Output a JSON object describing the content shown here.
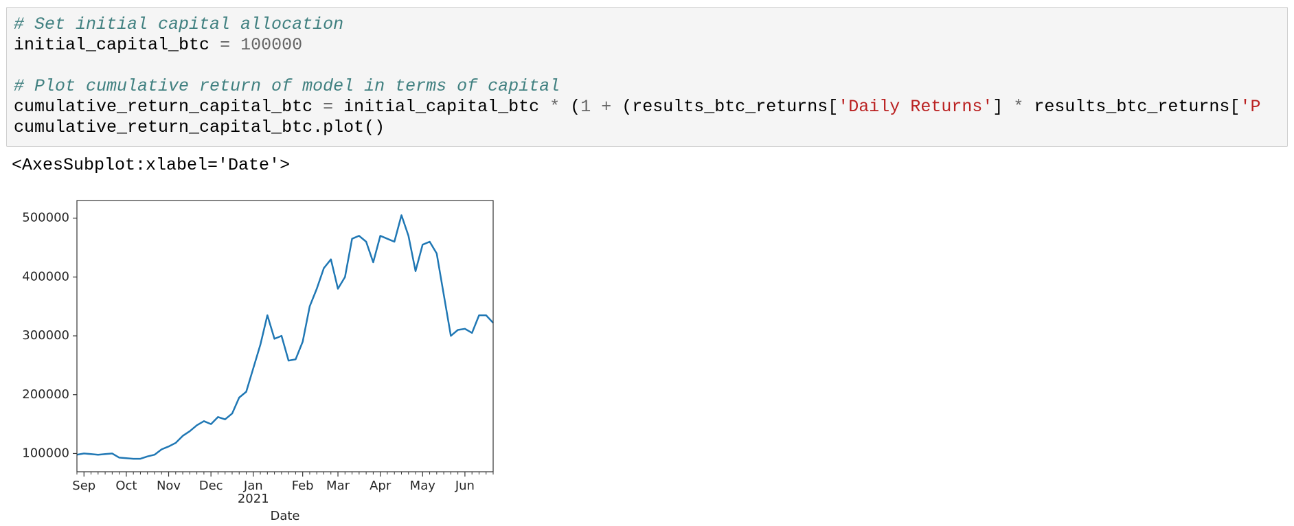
{
  "code": {
    "lines": [
      [
        {
          "text": "# Set initial capital allocation",
          "color": "#408080",
          "italic": true
        }
      ],
      [
        {
          "text": "initial_capital_btc ",
          "color": "#000000"
        },
        {
          "text": "=",
          "color": "#666666"
        },
        {
          "text": " ",
          "color": "#000000"
        },
        {
          "text": "100000",
          "color": "#666666"
        }
      ],
      [],
      [
        {
          "text": "# Plot cumulative return of model in terms of capital",
          "color": "#408080",
          "italic": true
        }
      ],
      [
        {
          "text": "cumulative_return_capital_btc ",
          "color": "#000000"
        },
        {
          "text": "=",
          "color": "#666666"
        },
        {
          "text": " initial_capital_btc ",
          "color": "#000000"
        },
        {
          "text": "*",
          "color": "#666666"
        },
        {
          "text": " (",
          "color": "#000000"
        },
        {
          "text": "1",
          "color": "#666666"
        },
        {
          "text": " ",
          "color": "#000000"
        },
        {
          "text": "+",
          "color": "#666666"
        },
        {
          "text": " (results_btc_returns[",
          "color": "#000000"
        },
        {
          "text": "'Daily Returns'",
          "color": "#ba2121"
        },
        {
          "text": "] ",
          "color": "#000000"
        },
        {
          "text": "*",
          "color": "#666666"
        },
        {
          "text": " results_btc_returns[",
          "color": "#000000"
        },
        {
          "text": "'P",
          "color": "#ba2121"
        }
      ],
      [
        {
          "text": "cumulative_return_capital_btc.plot()",
          "color": "#000000"
        }
      ]
    ]
  },
  "output": {
    "text": "<AxesSubplot:xlabel='Date'>"
  },
  "chart_data": {
    "type": "line",
    "categories": [
      null,
      "Sep",
      null,
      null,
      null,
      null,
      null,
      "Oct",
      null,
      null,
      null,
      null,
      null,
      "Nov",
      null,
      null,
      null,
      null,
      null,
      "Dec",
      null,
      null,
      null,
      null,
      null,
      "Jan",
      null,
      null,
      null,
      null,
      null,
      null,
      "Feb",
      null,
      null,
      null,
      null,
      "Mar",
      null,
      null,
      null,
      null,
      null,
      "Apr",
      null,
      null,
      null,
      null,
      null,
      "May",
      null,
      null,
      null,
      null,
      null,
      "Jun",
      null,
      null,
      null,
      null
    ],
    "x_year": "2021",
    "x_label": "Date",
    "series": [
      {
        "color": "#1f77b4",
        "values": [
          98000,
          100000,
          99000,
          98000,
          99000,
          100000,
          93000,
          92000,
          91000,
          91000,
          95000,
          98000,
          107000,
          112000,
          118000,
          130000,
          138000,
          148000,
          155000,
          150000,
          162000,
          158000,
          168000,
          195000,
          205000,
          245000,
          285000,
          335000,
          295000,
          300000,
          258000,
          260000,
          290000,
          350000,
          380000,
          415000,
          430000,
          380000,
          400000,
          465000,
          470000,
          460000,
          425000,
          470000,
          465000,
          460000,
          505000,
          470000,
          410000,
          455000,
          460000,
          440000,
          370000,
          300000,
          310000,
          312000,
          305000,
          335000,
          335000,
          322000
        ]
      }
    ],
    "ylim": [
      69000,
      530000
    ],
    "yticks": [
      100000,
      200000,
      300000,
      400000,
      500000
    ]
  }
}
